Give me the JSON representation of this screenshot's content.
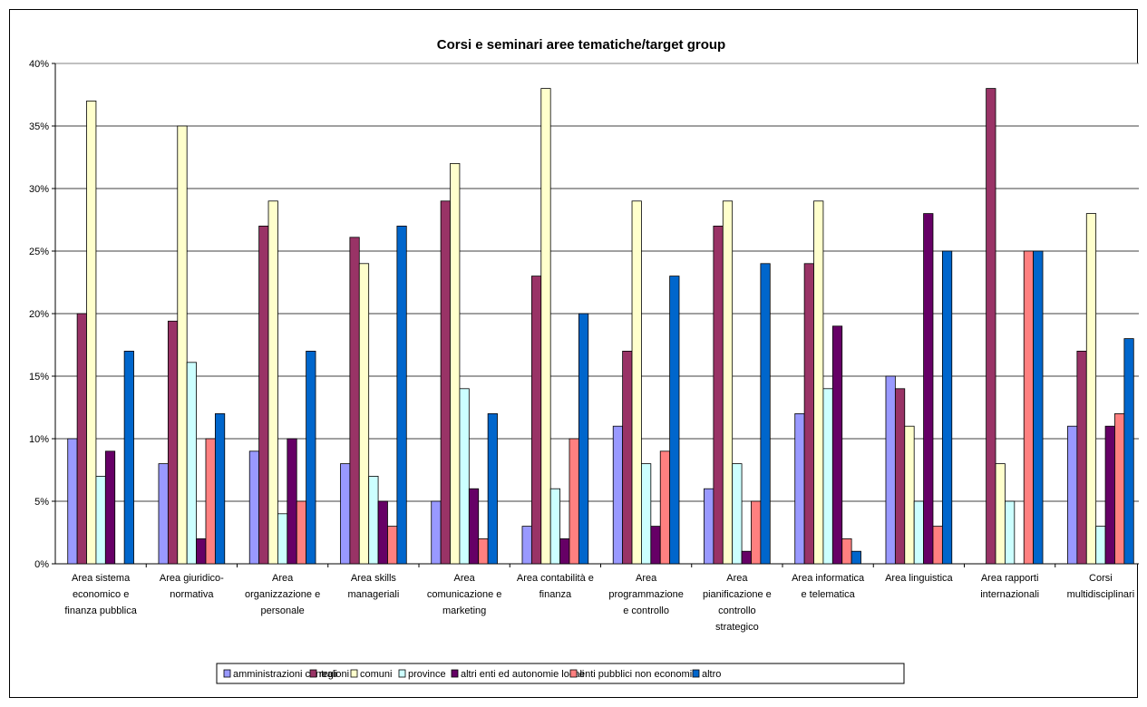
{
  "chart_data": {
    "type": "bar",
    "title": "Corsi e seminari aree tematiche/target group",
    "ylim": [
      0,
      40
    ],
    "yticks": [
      "0%",
      "5%",
      "10%",
      "15%",
      "20%",
      "25%",
      "30%",
      "35%",
      "40%"
    ],
    "grid": true,
    "legend_position": "bottom",
    "categories": [
      [
        "Area sistema",
        "economico e",
        "finanza pubblica"
      ],
      [
        "Area giuridico-",
        "normativa"
      ],
      [
        "Area",
        "organizzazione e",
        "personale"
      ],
      [
        "Area skills",
        "manageriali"
      ],
      [
        "Area",
        "comunicazione e",
        "marketing"
      ],
      [
        "Area contabilità e",
        "finanza"
      ],
      [
        "Area",
        "programmazione",
        "e controllo"
      ],
      [
        "Area",
        "pianificazione e",
        "controllo",
        "strategico"
      ],
      [
        "Area informatica",
        "e telematica"
      ],
      [
        "Area linguistica"
      ],
      [
        "Area rapporti",
        "internazionali"
      ],
      [
        "Corsi",
        "multidisciplinari"
      ]
    ],
    "series": [
      {
        "name": "amministrazioni centrali",
        "color": "#9999FF",
        "values": [
          10,
          8,
          9,
          8,
          5,
          3,
          11,
          6,
          12,
          15,
          0,
          11
        ]
      },
      {
        "name": "regioni",
        "color": "#993366",
        "values": [
          20,
          19.4,
          27,
          26.1,
          29,
          23,
          17,
          27,
          24,
          14,
          38,
          17
        ]
      },
      {
        "name": "comuni",
        "color": "#FFFFCC",
        "values": [
          37,
          35,
          29,
          24,
          32,
          38,
          29,
          29,
          29,
          11,
          8,
          28
        ]
      },
      {
        "name": "province",
        "color": "#CCFFFF",
        "values": [
          7,
          16.1,
          4,
          7,
          14,
          6,
          8,
          8,
          14,
          5,
          5,
          3
        ]
      },
      {
        "name": "altri enti ed autonomie locali",
        "color": "#660066",
        "values": [
          9,
          2,
          10,
          5,
          6,
          2,
          3,
          1,
          19,
          28,
          0,
          11
        ]
      },
      {
        "name": "enti pubblici non economici",
        "color": "#FF8080",
        "values": [
          0,
          10,
          5,
          3,
          2,
          10,
          9,
          5,
          2,
          3,
          25,
          12
        ]
      },
      {
        "name": "altro",
        "color": "#0066CC",
        "values": [
          17,
          12,
          17,
          27,
          12,
          20,
          23,
          24,
          1,
          25,
          25,
          18
        ]
      }
    ]
  }
}
